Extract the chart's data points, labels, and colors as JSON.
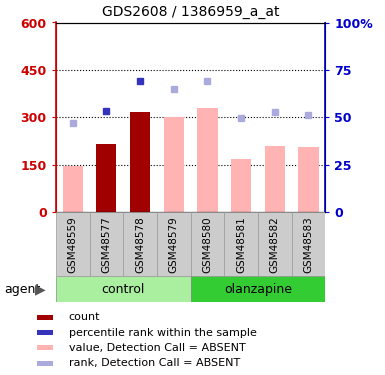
{
  "title": "GDS2608 / 1386959_a_at",
  "samples": [
    "GSM48559",
    "GSM48577",
    "GSM48578",
    "GSM48579",
    "GSM48580",
    "GSM48581",
    "GSM48582",
    "GSM48583"
  ],
  "bar_values": [
    145,
    215,
    315,
    300,
    330,
    168,
    210,
    205
  ],
  "bar_colors": [
    "#FFB3B3",
    "#A00000",
    "#A00000",
    "#FFB3B3",
    "#FFB3B3",
    "#FFB3B3",
    "#FFB3B3",
    "#FFB3B3"
  ],
  "dot_values_left": [
    280,
    320,
    415,
    390,
    415,
    298,
    315,
    308
  ],
  "dot_colors": [
    "#AAAADD",
    "#3333BB",
    "#3333BB",
    "#AAAADD",
    "#AAAADD",
    "#AAAADD",
    "#AAAADD",
    "#AAAADD"
  ],
  "ylim_left": [
    0,
    600
  ],
  "ylim_right": [
    0,
    100
  ],
  "yticks_left": [
    0,
    150,
    300,
    450,
    600
  ],
  "ytick_labels_left": [
    "0",
    "150",
    "300",
    "450",
    "600"
  ],
  "ytick_labels_right": [
    "0",
    "25",
    "50",
    "75",
    "100%"
  ],
  "yticks_right": [
    0,
    25,
    50,
    75,
    100
  ],
  "gridlines": [
    150,
    300,
    450
  ],
  "left_axis_color": "#CC0000",
  "right_axis_color": "#0000CC",
  "control_color_light": "#AAEEA0",
  "control_color_dark": "#33CC33",
  "control_label": "control",
  "olanzapine_label": "olanzapine",
  "legend_items": [
    {
      "label": "count",
      "color": "#A00000"
    },
    {
      "label": "percentile rank within the sample",
      "color": "#3333BB"
    },
    {
      "label": "value, Detection Call = ABSENT",
      "color": "#FFB3B3"
    },
    {
      "label": "rank, Detection Call = ABSENT",
      "color": "#AAAADD"
    }
  ],
  "agent_label": "agent"
}
